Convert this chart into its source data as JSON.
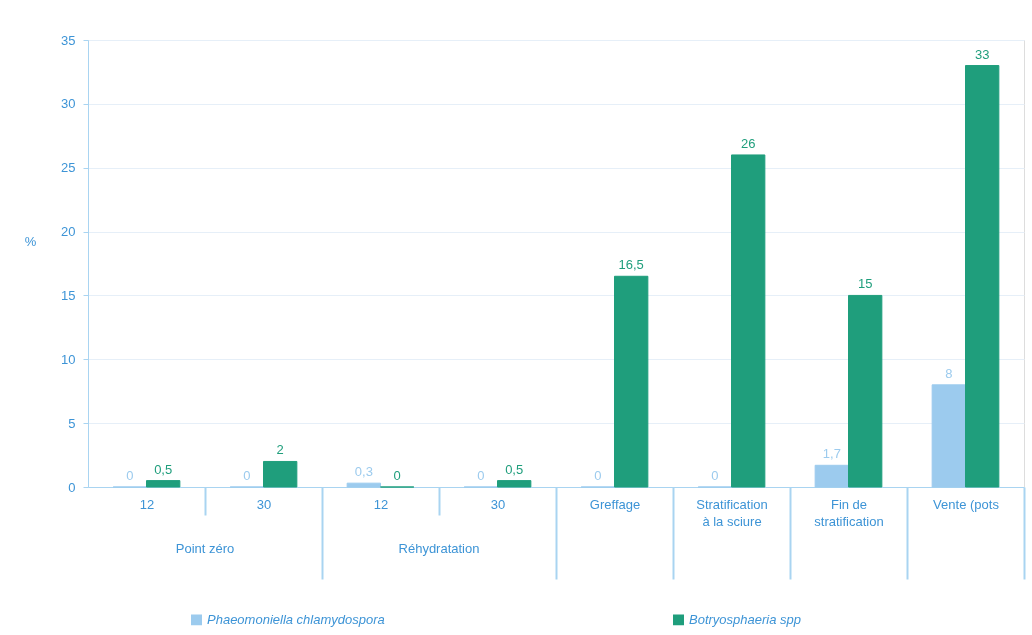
{
  "chart_data": {
    "type": "bar",
    "ylabel": "%",
    "categories": [
      "12",
      "30",
      "12",
      "30",
      "Greffage",
      "Stratification à la sciure",
      "Fin de stratification",
      "Vente (pots"
    ],
    "annotations": [
      "Point zéro",
      "Réhydratation"
    ],
    "series": [
      {
        "name": "Phaeomoniella chlamydospora",
        "color": "#9ccbee",
        "values": [
          0,
          0,
          0.3,
          0,
          0,
          0,
          1.7,
          8
        ],
        "value_labels": [
          "0",
          "0",
          "0,3",
          "0",
          "0",
          "0",
          "1,7",
          "8"
        ]
      },
      {
        "name": "Botryosphaeria spp",
        "color": "#1f9e7c",
        "values": [
          0.5,
          2,
          0,
          0.5,
          16.5,
          26,
          15,
          33
        ],
        "value_labels": [
          "0,5",
          "2",
          "0",
          "0,5",
          "16,5",
          "26",
          "15",
          "33"
        ]
      }
    ],
    "ylim": [
      0,
      35
    ],
    "yticks": [
      0,
      5,
      10,
      15,
      20,
      25,
      30,
      35
    ],
    "grid": "y",
    "legend": "bottom"
  }
}
